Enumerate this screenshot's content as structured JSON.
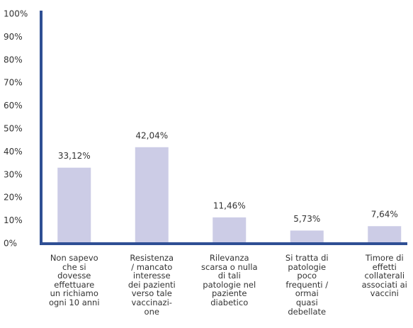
{
  "chart_data": {
    "type": "bar",
    "categories": [
      "Non sapevo\nche si\ndovesse\neffettuare\nun richiamo\nogni 10 anni",
      "Resistenza\n/ mancato\ninteresse\ndei pazienti\nverso tale\nvaccinazi-\none",
      "Rilevanza\nscarsa o nulla\ndi tali\npatologie nel\npaziente\ndiabetico",
      "Si tratta di\npatologie\npoco\nfrequenti /\normai\nquasi\ndebellate",
      "Timore di\neffetti\ncollaterali\nassociati ai\nvaccini"
    ],
    "values": [
      33.12,
      42.04,
      11.46,
      5.73,
      7.64
    ],
    "value_labels": [
      "33,12%",
      "42,04%",
      "11,46%",
      "5,73%",
      "7,64%"
    ],
    "color": "#cccce6",
    "axis_color": "#2f4f94",
    "ylim": [
      0,
      100
    ],
    "yticks": [
      {
        "value": 0,
        "label": "0%"
      },
      {
        "value": 10,
        "label": "10%"
      },
      {
        "value": 20,
        "label": "20%"
      },
      {
        "value": 30,
        "label": "30%"
      },
      {
        "value": 40,
        "label": "40%"
      },
      {
        "value": 50,
        "label": "50%"
      },
      {
        "value": 60,
        "label": "60%"
      },
      {
        "value": 70,
        "label": "70%"
      },
      {
        "value": 80,
        "label": "80%"
      },
      {
        "value": 90,
        "label": "90%"
      },
      {
        "value": 100,
        "label": "100%"
      }
    ],
    "grid": false
  }
}
